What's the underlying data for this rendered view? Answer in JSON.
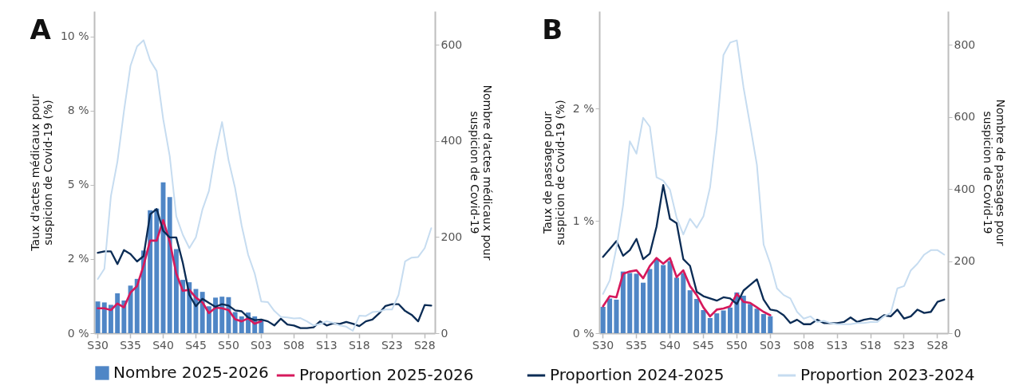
{
  "chart_data": [
    {
      "type": "line",
      "title": "A",
      "ylabel": "Taux d'actes médicaux pour\nsuspicion de Covid-19 (%)",
      "y2label": "Nombre d'actes médicaux pour\nsuspicion de Covid-19",
      "categories": [
        "S30",
        null,
        null,
        null,
        null,
        "S35",
        null,
        null,
        null,
        null,
        "S40",
        null,
        null,
        null,
        null,
        "S45",
        null,
        null,
        null,
        null,
        "S50",
        null,
        null,
        null,
        null,
        "S03",
        null,
        null,
        null,
        null,
        "S08",
        null,
        null,
        null,
        null,
        "S13",
        null,
        null,
        null,
        null,
        "S18",
        null,
        null,
        null,
        null,
        "S23",
        null,
        null,
        null,
        null,
        "S28",
        null
      ],
      "ylim": [
        0,
        10.86
      ],
      "yticks": [
        {
          "value": 0,
          "label": "0 %"
        },
        {
          "value": 2.5,
          "label": "2 %"
        },
        {
          "value": 5,
          "label": "5 %"
        },
        {
          "value": 7.5,
          "label": "8 %"
        },
        {
          "value": 10,
          "label": "10 %"
        }
      ],
      "y2lim": [
        0,
        670
      ],
      "y2ticks": [
        0,
        200,
        400,
        600
      ],
      "legend": "bottom",
      "series": [
        {
          "name": "Nombre 2025-2026",
          "type": "bar",
          "axis": "y2",
          "color": "#4f86c6",
          "values": [
            66,
            64,
            59,
            83,
            68,
            99,
            113,
            172,
            256,
            259,
            314,
            283,
            175,
            111,
            106,
            92,
            86,
            56,
            74,
            76,
            75,
            44,
            35,
            43,
            35,
            27,
            null,
            null,
            null,
            null,
            null,
            null,
            null,
            null,
            null,
            null,
            null,
            null,
            null,
            null,
            null,
            null,
            null,
            null,
            null,
            null,
            null,
            null,
            null,
            null,
            null,
            null
          ]
        },
        {
          "name": "Proportion 2025-2026",
          "color": "#d6195c",
          "values": [
            0.84,
            0.84,
            0.78,
            1.0,
            0.87,
            1.37,
            1.59,
            2.28,
            3.12,
            3.12,
            3.81,
            3.09,
            2.01,
            1.43,
            1.46,
            1.2,
            1.04,
            0.68,
            0.86,
            0.84,
            0.78,
            0.47,
            0.4,
            0.5,
            0.32,
            0.4,
            null,
            null,
            null,
            null,
            null,
            null,
            null,
            null,
            null,
            null,
            null,
            null,
            null,
            null,
            null,
            null,
            null,
            null,
            null,
            null,
            null,
            null,
            null,
            null,
            null,
            null
          ]
        },
        {
          "name": "Proportion 2024-2025",
          "color": "#0b2c55",
          "values": [
            2.71,
            2.76,
            2.76,
            2.33,
            2.8,
            2.67,
            2.42,
            2.6,
            4.01,
            4.19,
            3.45,
            3.23,
            3.23,
            2.37,
            1.29,
            0.91,
            1.16,
            1.02,
            0.89,
            0.98,
            0.93,
            0.77,
            0.74,
            0.53,
            0.44,
            0.46,
            0.4,
            0.26,
            0.49,
            0.29,
            0.26,
            0.17,
            0.17,
            0.2,
            0.4,
            0.26,
            0.33,
            0.31,
            0.38,
            0.32,
            0.24,
            0.4,
            0.46,
            0.66,
            0.92,
            0.98,
            0.98,
            0.75,
            0.62,
            0.4,
            0.95,
            0.93
          ]
        },
        {
          "name": "Proportion 2023-2024",
          "color": "#c6dcf0",
          "values": [
            1.83,
            2.17,
            4.62,
            5.79,
            7.49,
            9.02,
            9.67,
            9.88,
            9.2,
            8.84,
            7.22,
            5.97,
            3.94,
            3.32,
            2.87,
            3.23,
            4.17,
            4.8,
            6.1,
            7.12,
            5.83,
            4.89,
            3.63,
            2.64,
            2.01,
            1.07,
            1.05,
            0.75,
            0.55,
            0.53,
            0.5,
            0.51,
            0.4,
            0.26,
            0.31,
            0.4,
            0.35,
            0.26,
            0.22,
            0.08,
            0.59,
            0.58,
            0.71,
            0.73,
            0.8,
            0.8,
            1.29,
            2.42,
            2.55,
            2.57,
            2.87,
            3.54
          ]
        }
      ]
    },
    {
      "type": "line",
      "title": "B",
      "ylabel": "Taux de passage pour\nsuspicion de Covid-19 (%)",
      "y2label": "Nombre de passages pour\nsuspicion de Covid-19",
      "categories": [
        "S30",
        null,
        null,
        null,
        null,
        "S35",
        null,
        null,
        null,
        null,
        "S40",
        null,
        null,
        null,
        null,
        "S45",
        null,
        null,
        null,
        null,
        "S50",
        null,
        null,
        null,
        null,
        "S03",
        null,
        null,
        null,
        null,
        "S08",
        null,
        null,
        null,
        null,
        "S13",
        null,
        null,
        null,
        null,
        "S18",
        null,
        null,
        null,
        null,
        "S23",
        null,
        null,
        null,
        null,
        "S28",
        null
      ],
      "ylim": [
        0,
        2.87
      ],
      "yticks": [
        {
          "value": 0,
          "label": "0 %"
        },
        {
          "value": 1,
          "label": "1 %"
        },
        {
          "value": 2,
          "label": "2 %"
        }
      ],
      "y2lim": [
        0,
        893
      ],
      "y2ticks": [
        0,
        200,
        400,
        600,
        800
      ],
      "series": [
        {
          "name": "Nombre 2025-2026",
          "type": "bar",
          "axis": "y2",
          "color": "#4f86c6",
          "values": [
            73,
            96,
            93,
            171,
            167,
            165,
            140,
            178,
            204,
            189,
            200,
            154,
            167,
            119,
            95,
            64,
            42,
            55,
            63,
            71,
            113,
            104,
            81,
            68,
            53,
            47,
            null,
            null,
            null,
            null,
            null,
            null,
            null,
            null,
            null,
            null,
            null,
            null,
            null,
            null,
            null,
            null,
            null,
            null,
            null,
            null,
            null,
            null,
            null,
            null,
            null,
            null
          ]
        },
        {
          "name": "Proportion 2025-2026",
          "color": "#d6195c",
          "values": [
            0.24,
            0.33,
            0.32,
            0.53,
            0.55,
            0.56,
            0.49,
            0.6,
            0.67,
            0.62,
            0.67,
            0.5,
            0.56,
            0.42,
            0.34,
            0.23,
            0.15,
            0.21,
            0.22,
            0.24,
            0.35,
            0.28,
            0.27,
            0.23,
            0.19,
            0.16,
            null,
            null,
            null,
            null,
            null,
            null,
            null,
            null,
            null,
            null,
            null,
            null,
            null,
            null,
            null,
            null,
            null,
            null,
            null,
            null,
            null,
            null,
            null,
            null,
            null,
            null
          ]
        },
        {
          "name": "Proportion 2024-2025",
          "color": "#0b2c55",
          "values": [
            0.68,
            0.75,
            0.82,
            0.69,
            0.74,
            0.84,
            0.66,
            0.71,
            0.95,
            1.32,
            1.02,
            0.98,
            0.66,
            0.6,
            0.37,
            0.33,
            0.31,
            0.29,
            0.32,
            0.31,
            0.26,
            0.38,
            0.43,
            0.48,
            0.3,
            0.21,
            0.2,
            0.16,
            0.09,
            0.12,
            0.08,
            0.08,
            0.12,
            0.09,
            0.09,
            0.09,
            0.1,
            0.14,
            0.1,
            0.12,
            0.13,
            0.12,
            0.16,
            0.15,
            0.21,
            0.13,
            0.15,
            0.21,
            0.18,
            0.19,
            0.28,
            0.3
          ]
        },
        {
          "name": "Proportion 2023-2024",
          "color": "#c6dcf0",
          "values": [
            0.35,
            0.47,
            0.76,
            1.14,
            1.71,
            1.6,
            1.92,
            1.84,
            1.39,
            1.36,
            1.28,
            1.03,
            0.88,
            1.02,
            0.94,
            1.04,
            1.3,
            1.81,
            2.48,
            2.59,
            2.61,
            2.19,
            1.85,
            1.5,
            0.79,
            0.62,
            0.4,
            0.34,
            0.31,
            0.19,
            0.13,
            0.15,
            0.1,
            0.11,
            0.09,
            0.08,
            0.08,
            0.08,
            0.09,
            0.09,
            0.1,
            0.1,
            0.15,
            0.18,
            0.4,
            0.42,
            0.56,
            0.62,
            0.7,
            0.74,
            0.74,
            0.7
          ]
        }
      ]
    }
  ]
}
